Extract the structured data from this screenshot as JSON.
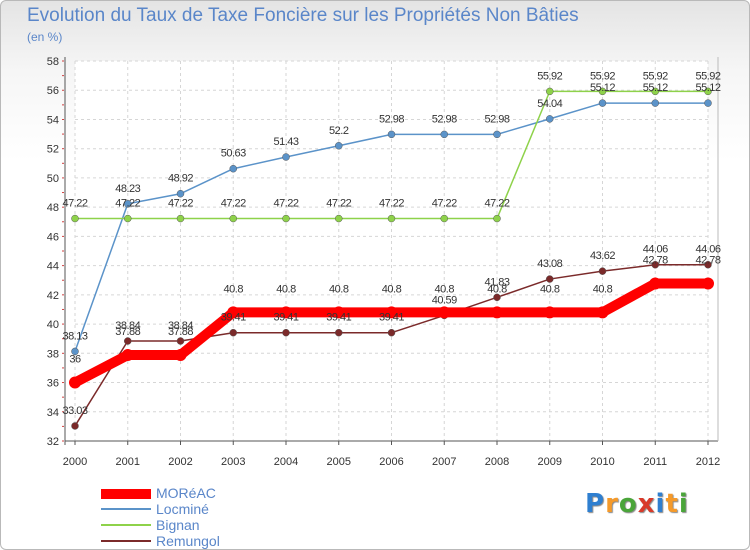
{
  "chart_data": {
    "type": "line",
    "title": "Evolution du Taux de Taxe Foncière sur les Propriétés Non Bâties",
    "subtitle": "(en %)",
    "xlabel": "",
    "ylabel": "",
    "ylim": [
      32,
      58
    ],
    "yticks": [
      32,
      34,
      36,
      38,
      40,
      42,
      44,
      46,
      48,
      50,
      52,
      54,
      56,
      58
    ],
    "grid": true,
    "legend_position": "bottom-left",
    "categories": [
      "2000",
      "2001",
      "2002",
      "2003",
      "2004",
      "2005",
      "2006",
      "2007",
      "2008",
      "2009",
      "2010",
      "2011",
      "2012"
    ],
    "series": [
      {
        "name": "MORéAC",
        "color": "#ff0000",
        "values": [
          36,
          37.88,
          37.88,
          40.8,
          40.8,
          40.8,
          40.8,
          40.8,
          40.8,
          40.8,
          40.8,
          42.78,
          42.78
        ],
        "labels": [
          "36",
          "37.88",
          "37.88",
          "40.8",
          "40.8",
          "40.8",
          "40.8",
          "40.8",
          "40.8",
          "40.8",
          "40.8",
          "42.78",
          "42.78"
        ]
      },
      {
        "name": "Locminé",
        "color": "#5b93c9",
        "values": [
          38.13,
          48.23,
          48.92,
          50.63,
          51.43,
          52.2,
          52.98,
          52.98,
          52.98,
          54.04,
          55.12,
          55.12,
          55.12
        ],
        "labels": [
          "38.13",
          "48.23",
          "48.92",
          "50.63",
          "51.43",
          "52.2",
          "52.98",
          "52.98",
          "52.98",
          "54.04",
          "55.12",
          "55.12",
          "55.12"
        ]
      },
      {
        "name": "Bignan",
        "color": "#8ed24a",
        "values": [
          47.22,
          47.22,
          47.22,
          47.22,
          47.22,
          47.22,
          47.22,
          47.22,
          47.22,
          55.92,
          55.92,
          55.92,
          55.92
        ],
        "labels": [
          "47.22",
          "47.22",
          "47.22",
          "47.22",
          "47.22",
          "47.22",
          "47.22",
          "47.22",
          "47.22",
          "55.92",
          "55.92",
          "55.92",
          "55.92"
        ]
      },
      {
        "name": "Remungol",
        "color": "#7b2a2a",
        "values": [
          33.03,
          38.84,
          38.84,
          39.41,
          39.41,
          39.41,
          39.41,
          40.59,
          41.83,
          43.08,
          43.62,
          44.06,
          44.06
        ],
        "labels": [
          "33.03",
          "38.84",
          "38.84",
          "39.41",
          "39.41",
          "39.41",
          "39.41",
          "40.59",
          "41.83",
          "43.08",
          "43.62",
          "44.06",
          "44.06"
        ]
      }
    ]
  },
  "logo": {
    "letters": [
      "P",
      "r",
      "o",
      "x",
      "i",
      "t",
      "i"
    ],
    "colors": [
      "#2f7fd0",
      "#f59a2a",
      "#4aa53a",
      "#d83a2a",
      "#2f7fd0",
      "#f59a2a",
      "#4aa53a"
    ]
  }
}
